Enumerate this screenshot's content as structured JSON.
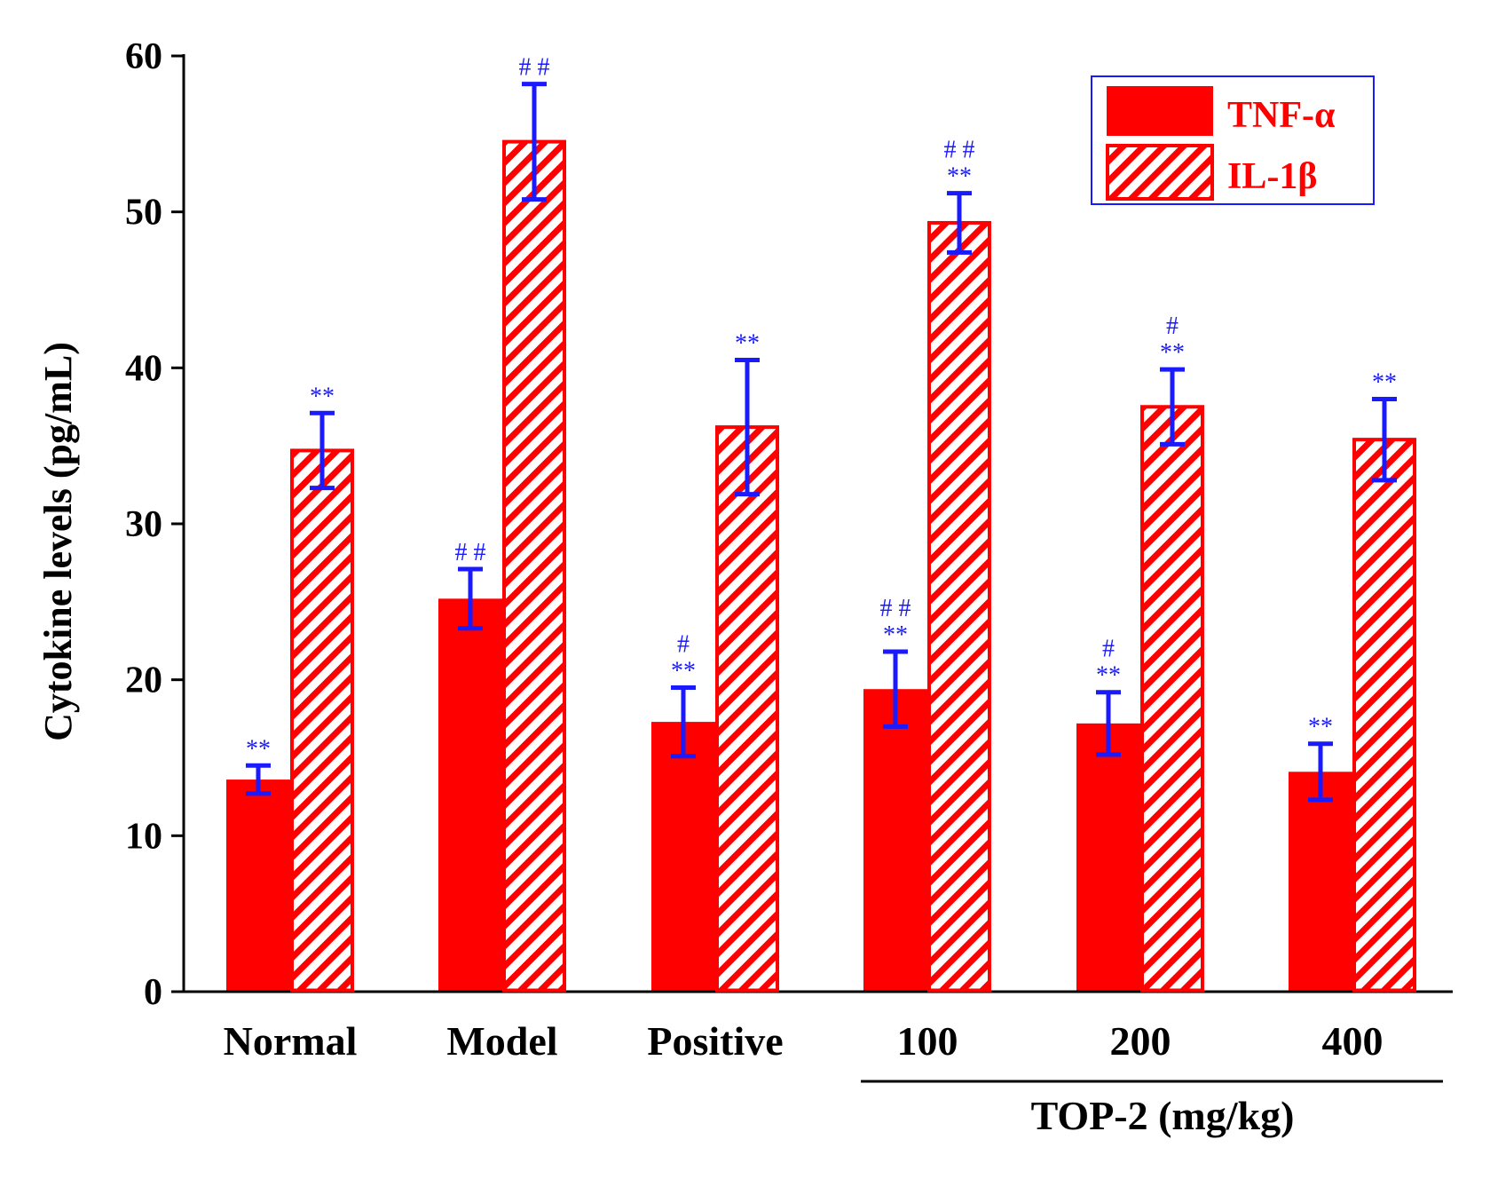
{
  "chart_data": {
    "type": "bar",
    "categories": [
      "Normal",
      "Model",
      "Positive",
      "100",
      "200",
      "400"
    ],
    "group_label": "TOP-2 (mg/kg)",
    "grouped_categories": [
      "100",
      "200",
      "400"
    ],
    "ylabel": "Cytokine levels (pg/mL)",
    "xlabel": "",
    "ylim": [
      0,
      60
    ],
    "yticks": [
      0,
      10,
      20,
      30,
      40,
      50,
      60
    ],
    "legend_position": "top-right",
    "grid": false,
    "series": [
      {
        "name": "TNF-α",
        "fill": "solid",
        "color": "#ff0000",
        "values": [
          13.6,
          25.2,
          17.3,
          19.4,
          17.2,
          14.1
        ],
        "errors": [
          0.9,
          1.9,
          2.2,
          2.4,
          2.0,
          1.8
        ],
        "annotations": [
          [
            "**"
          ],
          [
            "# #"
          ],
          [
            "#",
            "**"
          ],
          [
            "# #",
            "**"
          ],
          [
            "#",
            "**"
          ],
          [
            "**"
          ]
        ]
      },
      {
        "name": "IL-1β",
        "fill": "hatched",
        "color": "#ff0000",
        "values": [
          34.7,
          54.5,
          36.2,
          49.3,
          37.5,
          35.4
        ],
        "errors": [
          2.4,
          3.7,
          4.3,
          1.9,
          2.4,
          2.6
        ],
        "annotations": [
          [
            "**"
          ],
          [
            "# #"
          ],
          [
            "**"
          ],
          [
            "# #",
            "**"
          ],
          [
            "#",
            "**"
          ],
          [
            "**"
          ]
        ]
      }
    ],
    "error_bar_color": "#1a1aff"
  }
}
